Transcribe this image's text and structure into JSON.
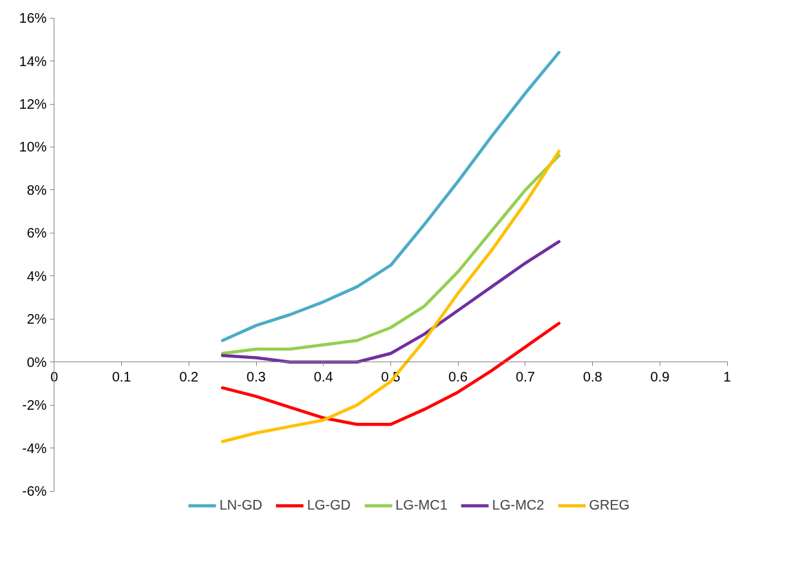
{
  "chart_data": {
    "type": "line",
    "x": [
      0.25,
      0.3,
      0.35,
      0.4,
      0.45,
      0.5,
      0.55,
      0.6,
      0.65,
      0.7,
      0.75
    ],
    "series": [
      {
        "name": "LN-GD",
        "color": "#4bacc6",
        "values": [
          1.0,
          1.7,
          2.2,
          2.8,
          3.5,
          4.5,
          6.4,
          8.4,
          10.5,
          12.5,
          14.4
        ]
      },
      {
        "name": "LG-GD",
        "color": "#ff0000",
        "values": [
          -1.2,
          -1.6,
          -2.1,
          -2.6,
          -2.9,
          -2.9,
          -2.2,
          -1.4,
          -0.4,
          0.7,
          1.8
        ]
      },
      {
        "name": "LG-MC1",
        "color": "#92d050",
        "values": [
          0.4,
          0.6,
          0.6,
          0.8,
          1.0,
          1.6,
          2.6,
          4.2,
          6.1,
          8.0,
          9.6
        ]
      },
      {
        "name": "LG-MC2",
        "color": "#7030a0",
        "values": [
          0.3,
          0.2,
          0.0,
          0.0,
          0.0,
          0.4,
          1.3,
          2.4,
          3.5,
          4.6,
          5.6
        ]
      },
      {
        "name": "GREG",
        "color": "#ffc000",
        "values": [
          -3.7,
          -3.3,
          -3.0,
          -2.7,
          -2.0,
          -0.9,
          1.0,
          3.2,
          5.2,
          7.4,
          9.8
        ]
      }
    ],
    "xlim": [
      0,
      1
    ],
    "xticks": [
      0,
      0.1,
      0.2,
      0.3,
      0.4,
      0.5,
      0.6,
      0.7,
      0.8,
      0.9,
      1
    ],
    "ylim": [
      -6,
      16
    ],
    "yticks": [
      {
        "value": -6,
        "label": "-6%"
      },
      {
        "value": -4,
        "label": "-4%"
      },
      {
        "value": -2,
        "label": "-2%"
      },
      {
        "value": 0,
        "label": "0%"
      },
      {
        "value": 2,
        "label": "2%"
      },
      {
        "value": 4,
        "label": "4%"
      },
      {
        "value": 6,
        "label": "6%"
      },
      {
        "value": 8,
        "label": "8%"
      },
      {
        "value": 10,
        "label": "10%"
      },
      {
        "value": 12,
        "label": "12%"
      },
      {
        "value": 14,
        "label": "14%"
      },
      {
        "value": 16,
        "label": "16%"
      }
    ],
    "grid": false,
    "legend": "bottom",
    "marker": "none",
    "line_style": "solid"
  }
}
